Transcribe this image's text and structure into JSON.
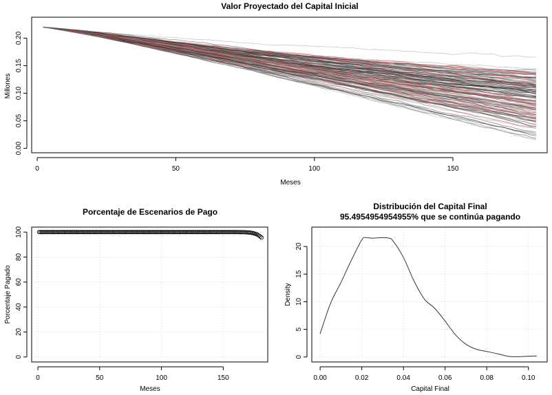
{
  "chart_data": [
    {
      "type": "line",
      "title": "Valor Proyectado del Capital Inicial",
      "xlabel": "Meses",
      "ylabel": "Millones",
      "xlim": [
        -2,
        184
      ],
      "ylim": [
        -0.008,
        0.238
      ],
      "x_ticks": [
        "0",
        "50",
        "100",
        "150"
      ],
      "y_ticks": [
        "0.00",
        "0.05",
        "0.10",
        "0.15",
        "0.20"
      ],
      "series_colors": [
        "#9a9a9a",
        "#303030",
        "#e04a4a"
      ],
      "series_summary": {
        "start_month": 2,
        "start_value": 0.22,
        "end_month": 181,
        "end_value_median": 0.03,
        "end_value_min": 0.0,
        "end_value_max": 0.104
      }
    },
    {
      "type": "scatter",
      "title": "Porcentaje de Escenarios de Pago",
      "xlabel": "Meses",
      "ylabel": "Porcentaje Pagado",
      "xlim": [
        -5,
        186
      ],
      "ylim": [
        -4,
        104
      ],
      "x_ticks": [
        "0",
        "50",
        "100",
        "150"
      ],
      "y_ticks": [
        "0",
        "20",
        "40",
        "60",
        "80",
        "100"
      ],
      "grid": true,
      "points": [
        {
          "x": 1,
          "y": 100
        },
        {
          "x": 160,
          "y": 100
        },
        {
          "x": 168,
          "y": 99.9
        },
        {
          "x": 172,
          "y": 99.6
        },
        {
          "x": 175,
          "y": 99.0
        },
        {
          "x": 177,
          "y": 98.3
        },
        {
          "x": 179,
          "y": 97.2
        },
        {
          "x": 181,
          "y": 95.5
        }
      ]
    },
    {
      "type": "line",
      "title": "Distribución del Capital Final",
      "subtitle": "95.4954954954955% que se continúa pagando",
      "xlabel": "Capital Final",
      "ylabel": "Density",
      "xlim": [
        -0.004,
        0.109
      ],
      "ylim": [
        -0.9,
        23.5
      ],
      "x_ticks": [
        "0.00",
        "0.02",
        "0.04",
        "0.06",
        "0.08",
        "0.10"
      ],
      "y_ticks": [
        "0",
        "5",
        "10",
        "15",
        "20"
      ],
      "grid": true,
      "x": [
        0.0,
        0.005,
        0.01,
        0.015,
        0.02,
        0.022,
        0.025,
        0.03,
        0.033,
        0.035,
        0.04,
        0.045,
        0.05,
        0.055,
        0.06,
        0.065,
        0.07,
        0.075,
        0.08,
        0.085,
        0.09,
        0.095,
        0.1,
        0.104
      ],
      "y": [
        4.2,
        9.7,
        13.5,
        17.5,
        21.2,
        21.6,
        21.5,
        21.6,
        21.5,
        21.0,
        18.0,
        13.8,
        10.5,
        8.8,
        6.5,
        4.0,
        2.3,
        1.4,
        1.0,
        0.6,
        0.15,
        0.05,
        0.15,
        0.2
      ]
    }
  ]
}
